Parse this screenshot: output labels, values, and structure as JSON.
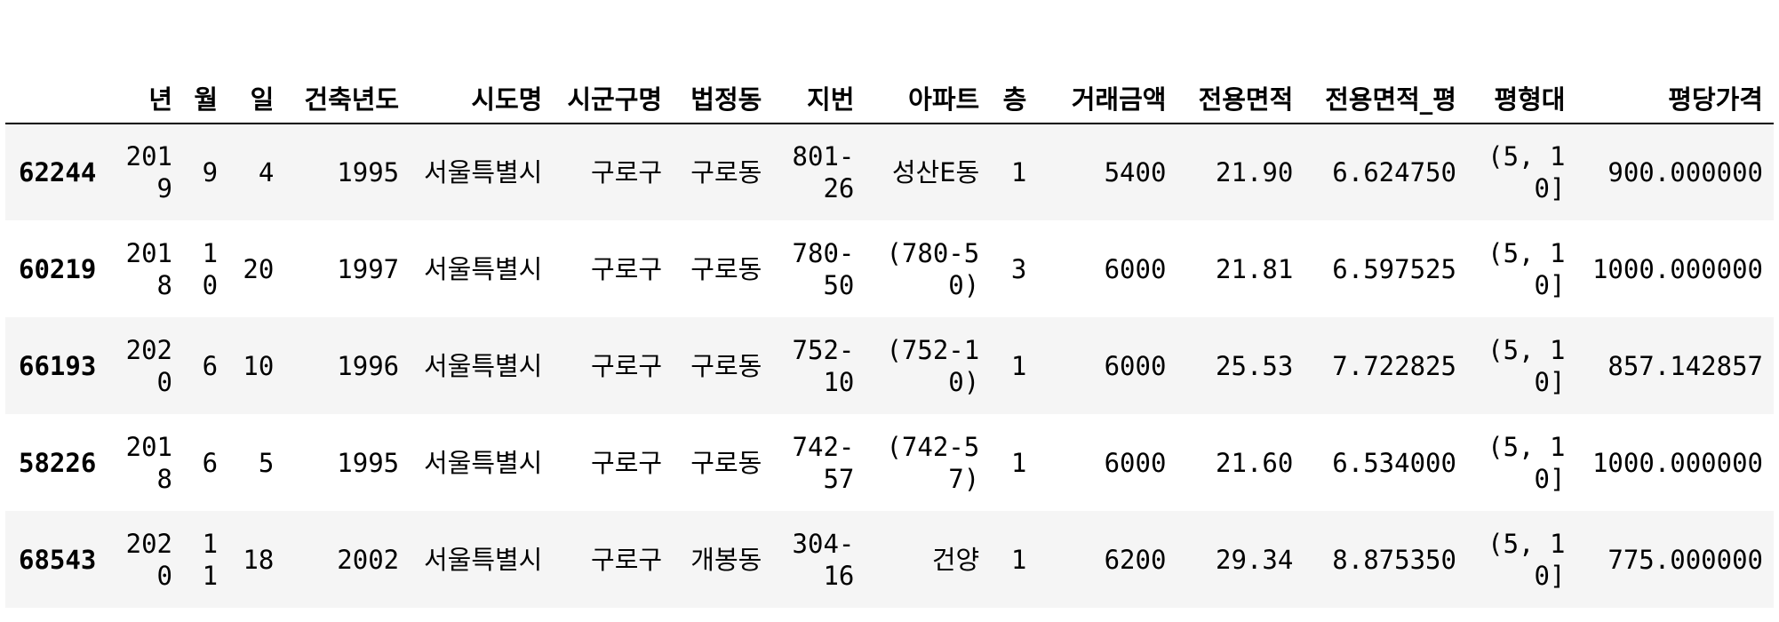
{
  "table": {
    "index_header": "",
    "columns": [
      "년",
      "월",
      "일",
      "건축년도",
      "시도명",
      "시군구명",
      "법정동",
      "지번",
      "아파트",
      "층",
      "거래금액",
      "전용면적",
      "전용면적_평",
      "평형대",
      "평당가격"
    ],
    "rows": [
      {
        "index": "62244",
        "cells": [
          "2019",
          "9",
          "4",
          "1995",
          "서울특별시",
          "구로구",
          "구로동",
          "801-26",
          "성산E동",
          "1",
          "5400",
          "21.90",
          "6.624750",
          "(5, 10]",
          "900.000000"
        ]
      },
      {
        "index": "60219",
        "cells": [
          "2018",
          "10",
          "20",
          "1997",
          "서울특별시",
          "구로구",
          "구로동",
          "780-50",
          "(780-50)",
          "3",
          "6000",
          "21.81",
          "6.597525",
          "(5, 10]",
          "1000.000000"
        ]
      },
      {
        "index": "66193",
        "cells": [
          "2020",
          "6",
          "10",
          "1996",
          "서울특별시",
          "구로구",
          "구로동",
          "752-10",
          "(752-10)",
          "1",
          "6000",
          "25.53",
          "7.722825",
          "(5, 10]",
          "857.142857"
        ]
      },
      {
        "index": "58226",
        "cells": [
          "2018",
          "6",
          "5",
          "1995",
          "서울특별시",
          "구로구",
          "구로동",
          "742-57",
          "(742-57)",
          "1",
          "6000",
          "21.60",
          "6.534000",
          "(5, 10]",
          "1000.000000"
        ]
      },
      {
        "index": "68543",
        "cells": [
          "2020",
          "11",
          "18",
          "2002",
          "서울특별시",
          "구로구",
          "개봉동",
          "304-16",
          "건양",
          "1",
          "6200",
          "29.34",
          "8.875350",
          "(5, 10]",
          "775.000000"
        ]
      }
    ]
  }
}
